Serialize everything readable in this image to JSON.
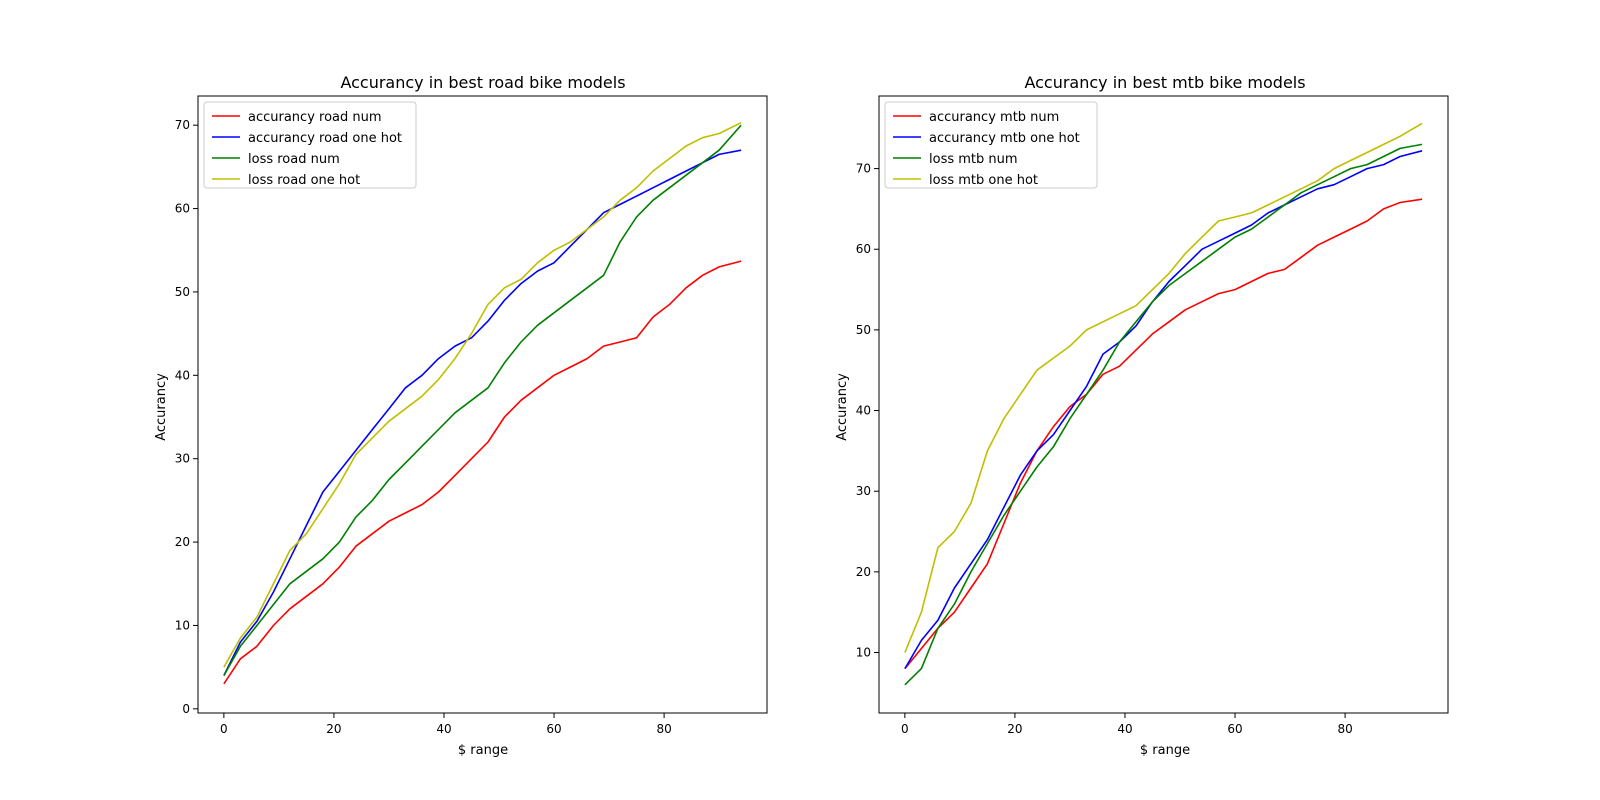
{
  "chart_data": [
    {
      "type": "line",
      "title": "Accurancy in best road bike models",
      "xlabel": "$ range",
      "ylabel": "Accurancy",
      "xlim": [
        -4.7,
        98.7
      ],
      "ylim": [
        -0.5,
        73.5
      ],
      "xticks": [
        0,
        20,
        40,
        60,
        80
      ],
      "yticks": [
        0,
        10,
        20,
        30,
        40,
        50,
        60,
        70
      ],
      "grid": false,
      "legend": "top-left",
      "series": [
        {
          "name": "accurancy road num",
          "color": "#ff0000",
          "x": [
            0,
            3,
            6,
            9,
            12,
            15,
            18,
            21,
            24,
            27,
            30,
            33,
            36,
            39,
            42,
            45,
            48,
            51,
            54,
            57,
            60,
            63,
            66,
            69,
            72,
            75,
            78,
            81,
            84,
            87,
            90,
            94
          ],
          "y": [
            3.0,
            6.0,
            7.5,
            10.0,
            12.0,
            13.5,
            15.0,
            17.0,
            19.5,
            21.0,
            22.5,
            23.5,
            24.5,
            26.0,
            28.0,
            30.0,
            32.0,
            35.0,
            37.0,
            38.5,
            40.0,
            41.0,
            42.0,
            43.5,
            44.0,
            44.5,
            47.0,
            48.5,
            50.5,
            52.0,
            53.0,
            53.7
          ]
        },
        {
          "name": "accurancy road one hot",
          "color": "#0000ff",
          "x": [
            0,
            3,
            6,
            9,
            12,
            15,
            18,
            21,
            24,
            27,
            30,
            33,
            36,
            39,
            42,
            45,
            48,
            51,
            54,
            57,
            60,
            63,
            66,
            69,
            72,
            75,
            78,
            81,
            84,
            87,
            90,
            94
          ],
          "y": [
            4.0,
            8.0,
            10.5,
            14.0,
            18.0,
            22.0,
            26.0,
            28.5,
            31.0,
            33.5,
            36.0,
            38.5,
            40.0,
            42.0,
            43.5,
            44.5,
            46.5,
            49.0,
            51.0,
            52.5,
            53.5,
            55.5,
            57.5,
            59.5,
            60.5,
            61.5,
            62.5,
            63.5,
            64.5,
            65.5,
            66.5,
            67.0
          ]
        },
        {
          "name": "loss road num",
          "color": "#008000",
          "x": [
            0,
            3,
            6,
            9,
            12,
            15,
            18,
            21,
            24,
            27,
            30,
            33,
            36,
            39,
            42,
            45,
            48,
            51,
            54,
            57,
            60,
            63,
            66,
            69,
            72,
            75,
            78,
            81,
            84,
            87,
            90,
            94
          ],
          "y": [
            4.0,
            7.5,
            10.0,
            12.5,
            15.0,
            16.5,
            18.0,
            20.0,
            23.0,
            25.0,
            27.5,
            29.5,
            31.5,
            33.5,
            35.5,
            37.0,
            38.5,
            41.5,
            44.0,
            46.0,
            47.5,
            49.0,
            50.5,
            52.0,
            56.0,
            59.0,
            61.0,
            62.5,
            64.0,
            65.5,
            67.0,
            70.0
          ]
        },
        {
          "name": "loss road one hot",
          "color": "#bfbf00",
          "x": [
            0,
            3,
            6,
            9,
            12,
            15,
            18,
            21,
            24,
            27,
            30,
            33,
            36,
            39,
            42,
            45,
            48,
            51,
            54,
            57,
            60,
            63,
            66,
            69,
            72,
            75,
            78,
            81,
            84,
            87,
            90,
            94
          ],
          "y": [
            5.0,
            8.5,
            11.0,
            15.0,
            19.0,
            21.0,
            24.0,
            27.0,
            30.5,
            32.5,
            34.5,
            36.0,
            37.5,
            39.5,
            42.0,
            45.0,
            48.5,
            50.5,
            51.5,
            53.5,
            55.0,
            56.0,
            57.5,
            59.0,
            61.0,
            62.5,
            64.5,
            66.0,
            67.5,
            68.5,
            69.0,
            70.3
          ]
        }
      ]
    },
    {
      "type": "line",
      "title": "Accurancy in best mtb bike models",
      "xlabel": "$ range",
      "ylabel": "Accurancy",
      "xlim": [
        -4.7,
        98.7
      ],
      "ylim": [
        2.5,
        79.0
      ],
      "xticks": [
        0,
        20,
        40,
        60,
        80
      ],
      "yticks": [
        10,
        20,
        30,
        40,
        50,
        60,
        70
      ],
      "grid": false,
      "legend": "top-left",
      "series": [
        {
          "name": "accurancy mtb num",
          "color": "#ff0000",
          "x": [
            0,
            3,
            6,
            9,
            12,
            15,
            18,
            21,
            24,
            27,
            30,
            33,
            36,
            39,
            42,
            45,
            48,
            51,
            54,
            57,
            60,
            63,
            66,
            69,
            72,
            75,
            78,
            81,
            84,
            87,
            90,
            94
          ],
          "y": [
            8.0,
            10.5,
            13.0,
            15.0,
            18.0,
            21.0,
            26.0,
            31.0,
            35.0,
            38.0,
            40.5,
            42.0,
            44.5,
            45.5,
            47.5,
            49.5,
            51.0,
            52.5,
            53.5,
            54.5,
            55.0,
            56.0,
            57.0,
            57.5,
            59.0,
            60.5,
            61.5,
            62.5,
            63.5,
            65.0,
            65.8,
            66.2
          ]
        },
        {
          "name": "accurancy mtb one hot",
          "color": "#0000ff",
          "x": [
            0,
            3,
            6,
            9,
            12,
            15,
            18,
            21,
            24,
            27,
            30,
            33,
            36,
            39,
            42,
            45,
            48,
            51,
            54,
            57,
            60,
            63,
            66,
            69,
            72,
            75,
            78,
            81,
            84,
            87,
            90,
            94
          ],
          "y": [
            8.0,
            11.5,
            14.0,
            18.0,
            21.0,
            24.0,
            28.0,
            32.0,
            35.0,
            37.0,
            40.0,
            43.0,
            47.0,
            48.5,
            50.5,
            53.5,
            56.0,
            58.0,
            60.0,
            61.0,
            62.0,
            63.0,
            64.5,
            65.5,
            66.5,
            67.5,
            68.0,
            69.0,
            70.0,
            70.5,
            71.5,
            72.2
          ]
        },
        {
          "name": "loss mtb num",
          "color": "#008000",
          "x": [
            0,
            3,
            6,
            9,
            12,
            15,
            18,
            21,
            24,
            27,
            30,
            33,
            36,
            39,
            42,
            45,
            48,
            51,
            54,
            57,
            60,
            63,
            66,
            69,
            72,
            75,
            78,
            81,
            84,
            87,
            90,
            94
          ],
          "y": [
            6.0,
            8.0,
            13.0,
            16.0,
            20.0,
            23.5,
            27.0,
            30.0,
            33.0,
            35.5,
            39.0,
            42.0,
            45.0,
            48.5,
            51.0,
            53.5,
            55.5,
            57.0,
            58.5,
            60.0,
            61.5,
            62.5,
            64.0,
            65.5,
            67.0,
            68.0,
            69.0,
            70.0,
            70.5,
            71.5,
            72.5,
            73.0
          ]
        },
        {
          "name": "loss mtb one hot",
          "color": "#bfbf00",
          "x": [
            0,
            3,
            6,
            9,
            12,
            15,
            18,
            21,
            24,
            27,
            30,
            33,
            36,
            39,
            42,
            45,
            48,
            51,
            54,
            57,
            60,
            63,
            66,
            69,
            72,
            75,
            78,
            81,
            84,
            87,
            90,
            94
          ],
          "y": [
            10.0,
            15.0,
            23.0,
            25.0,
            28.5,
            35.0,
            39.0,
            42.0,
            45.0,
            46.5,
            48.0,
            50.0,
            51.0,
            52.0,
            53.0,
            55.0,
            57.0,
            59.5,
            61.5,
            63.5,
            64.0,
            64.5,
            65.5,
            66.5,
            67.5,
            68.5,
            70.0,
            71.0,
            72.0,
            73.0,
            74.0,
            75.6
          ]
        }
      ]
    }
  ]
}
